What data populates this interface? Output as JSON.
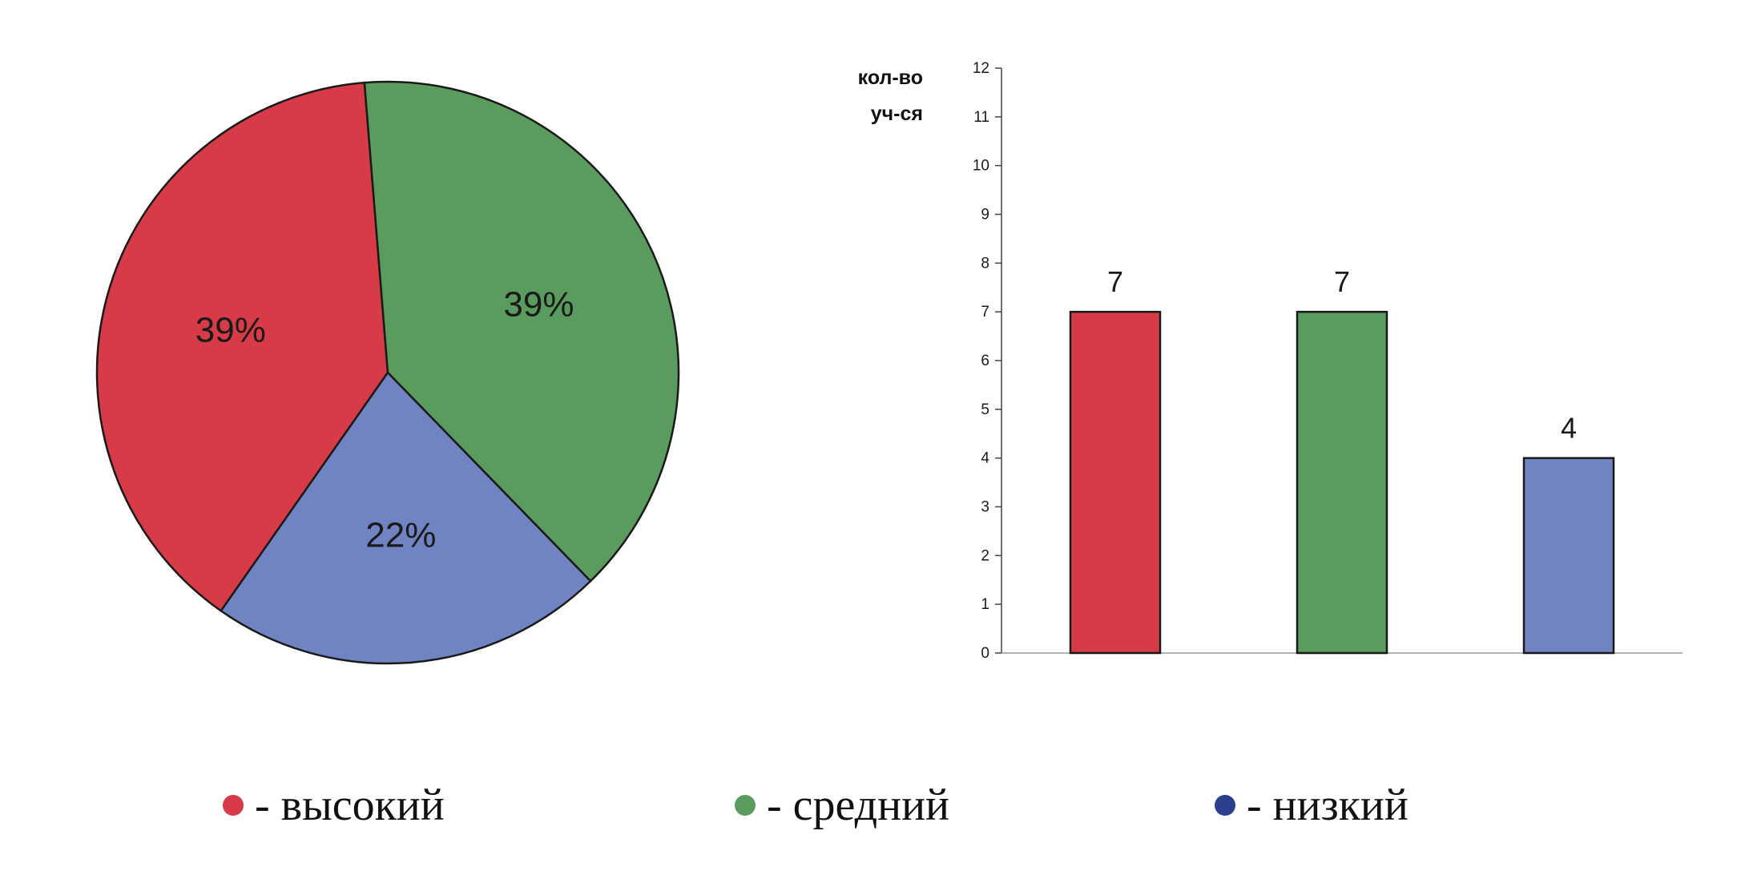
{
  "chart_data": [
    {
      "type": "pie",
      "slices": [
        {
          "label": "высокий",
          "value": 39,
          "text": "39%",
          "color": "#d63b47"
        },
        {
          "label": "средний",
          "value": 39,
          "text": "39%",
          "color": "#5a9b5e"
        },
        {
          "label": "низкий",
          "value": 22,
          "text": "22%",
          "color": "#7083c2"
        }
      ]
    },
    {
      "type": "bar",
      "ylabel": [
        "кол-во",
        "уч-ся"
      ],
      "ylim": [
        0,
        12
      ],
      "yticks": [
        "0",
        "1",
        "2",
        "3",
        "4",
        "5",
        "6",
        "7",
        "8",
        "9",
        "10",
        "11",
        "12"
      ],
      "categories": [
        "высокий",
        "средний",
        "низкий"
      ],
      "values": [
        7,
        7,
        4
      ],
      "data_labels": [
        "7",
        "7",
        "4"
      ],
      "colors": [
        "#d63b47",
        "#5a9b5e",
        "#7083c2"
      ]
    }
  ],
  "legend": [
    {
      "text": "- высокий",
      "color": "#d63b47"
    },
    {
      "text": "- средний",
      "color": "#5a9b5e"
    },
    {
      "text": "- низкий",
      "color": "#2c3f8c"
    }
  ]
}
